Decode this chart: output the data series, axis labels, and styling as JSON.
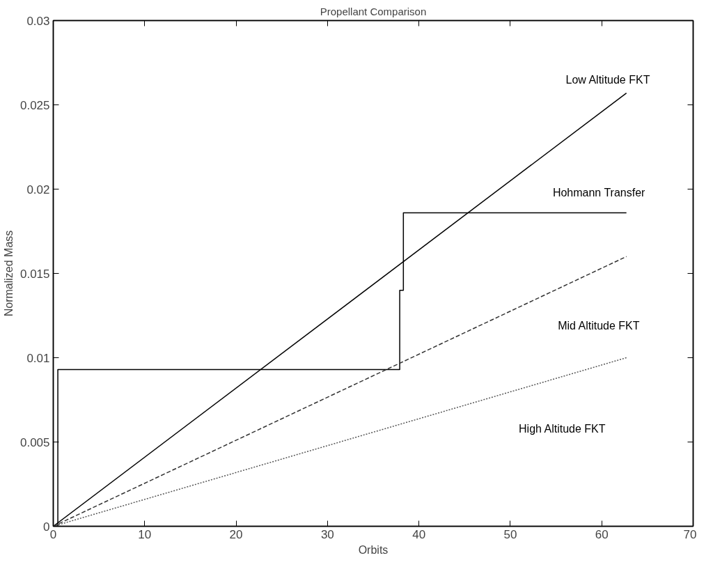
{
  "chart_data": {
    "type": "line",
    "title": "Propellant Comparison",
    "xlabel": "Orbits",
    "ylabel": "Normalized Mass",
    "xlim": [
      0,
      70
    ],
    "xticks": [
      0,
      10,
      20,
      30,
      40,
      50,
      60,
      70
    ],
    "ylim": [
      0,
      0.03
    ],
    "yticks": [
      0,
      0.005,
      0.01,
      0.015,
      0.02,
      0.025,
      0.03
    ],
    "grid": false,
    "marker": "none",
    "series": [
      {
        "name": "Low Altitude FKT",
        "color": "#000000",
        "line_style": "solid",
        "x": [
          0,
          62.7
        ],
        "values": [
          0,
          0.0257
        ]
      },
      {
        "name": "Hohmann Transfer",
        "type": "step",
        "color": "#000000",
        "line_style": "solid",
        "x": [
          0,
          0.5,
          37.9,
          38.3,
          62.7
        ],
        "values": [
          0,
          0.0093,
          0.014,
          0.0186,
          0.0186
        ]
      },
      {
        "name": "Mid Altitude FKT",
        "color": "#333333",
        "line_style": "dashed",
        "x": [
          0,
          62.7
        ],
        "values": [
          0,
          0.016
        ]
      },
      {
        "name": "High Altitude FKT",
        "color": "#555555",
        "line_style": "dotted",
        "x": [
          0,
          62.7
        ],
        "values": [
          0,
          0.01
        ]
      }
    ]
  }
}
